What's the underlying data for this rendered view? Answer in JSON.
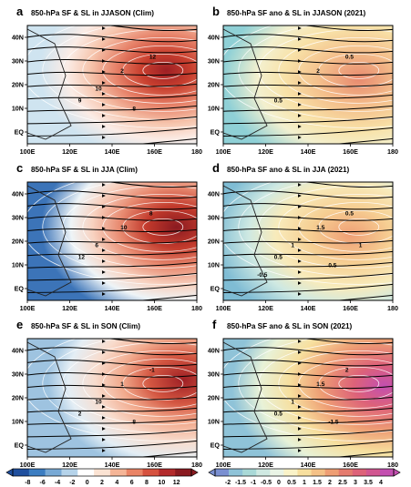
{
  "panels": [
    {
      "letter": "a",
      "title": "850-hPa SF & SL in JJASON (Clim)",
      "kind": "clim",
      "season": "JJASON",
      "contour_labels": [
        "9",
        "2",
        "12",
        "10",
        "8"
      ]
    },
    {
      "letter": "b",
      "title": "850-hPa SF ano & SL in JJASON (2021)",
      "kind": "ano",
      "season": "JJASON",
      "contour_labels": [
        "0.5",
        "2",
        "0.5"
      ]
    },
    {
      "letter": "c",
      "title": "850-hPa SF & SL in JJA (Clim)",
      "kind": "clim",
      "season": "JJA",
      "contour_labels": [
        "12",
        "10",
        "8",
        "6"
      ]
    },
    {
      "letter": "d",
      "title": "850-hPa SF ano & SL in JJA (2021)",
      "kind": "ano",
      "season": "JJA",
      "contour_labels": [
        "0.5",
        "1.5",
        "0.5",
        "1",
        "0.5",
        "-0.5",
        "1"
      ]
    },
    {
      "letter": "e",
      "title": "850-hPa SF & SL in SON (Clim)",
      "kind": "clim",
      "season": "SON",
      "contour_labels": [
        "2",
        "1",
        "-1",
        "10",
        "8"
      ]
    },
    {
      "letter": "f",
      "title": "850-hPa SF ano & SL in SON (2021)",
      "kind": "ano",
      "season": "SON",
      "contour_labels": [
        "0.5",
        "1.5",
        "2",
        "1",
        "-1.5"
      ]
    }
  ],
  "axes": {
    "x_ticks": [
      "100E",
      "120E",
      "140E",
      "160E",
      "180"
    ],
    "y_ticks": [
      "40N",
      "30N",
      "20N",
      "10N",
      "EQ"
    ],
    "x_range": [
      100,
      180
    ],
    "y_range": [
      -5,
      45
    ]
  },
  "colorbar_clim": {
    "labels": [
      "-8",
      "-6",
      "-4",
      "-2",
      "0",
      "2",
      "4",
      "6",
      "8",
      "10",
      "12"
    ],
    "colors": [
      "#1f4f9e",
      "#3c7dc1",
      "#78a9d5",
      "#b5d3ea",
      "#ffffff",
      "#fbe3d3",
      "#f5b597",
      "#ea8466",
      "#d6523f",
      "#b32a2b",
      "#8a1a20"
    ]
  },
  "colorbar_ano": {
    "labels": [
      "-2",
      "-1.5",
      "-1",
      "-0.5",
      "0",
      "0.5",
      "1",
      "1.5",
      "2",
      "2.5",
      "3",
      "3.5",
      "4"
    ],
    "colors": [
      "#7a8fd1",
      "#8fc3d8",
      "#a9d9d7",
      "#cfe9e2",
      "#eaf4e6",
      "#faf3c8",
      "#f7df9e",
      "#f4c187",
      "#ee9e74",
      "#e47b6e",
      "#dd6279",
      "#d15690",
      "#c34fb0"
    ]
  },
  "chart_data": [
    {
      "type": "heatmap",
      "title": "850-hPa SF & SL in JJASON (Clim)",
      "x_ticks": [
        "100E",
        "120E",
        "140E",
        "160E",
        "180"
      ],
      "y_ticks": [
        "40N",
        "30N",
        "20N",
        "10N",
        "EQ"
      ],
      "field": "streamfunction",
      "max_center": {
        "lon": 165,
        "lat": 30,
        "value": 12
      },
      "min_center": {
        "lon": 105,
        "lat": 5,
        "value": -2
      },
      "colorbar": [
        -8,
        -6,
        -4,
        -2,
        0,
        2,
        4,
        6,
        8,
        10,
        12
      ]
    },
    {
      "type": "heatmap",
      "title": "850-hPa SF ano & SL in JJASON (2021)",
      "x_ticks": [
        "100E",
        "120E",
        "140E",
        "160E",
        "180"
      ],
      "y_ticks": [
        "40N",
        "30N",
        "20N",
        "10N",
        "EQ"
      ],
      "field": "streamfunction anomaly",
      "max_center": {
        "lon": 160,
        "lat": 28,
        "value": 2
      },
      "min_center": {
        "lon": 115,
        "lat": 15,
        "value": -0.5
      },
      "colorbar": [
        -2,
        -1.5,
        -1,
        -0.5,
        0,
        0.5,
        1,
        1.5,
        2,
        2.5,
        3,
        3.5,
        4
      ]
    },
    {
      "type": "heatmap",
      "title": "850-hPa SF & SL in JJA (Clim)",
      "x_ticks": [
        "100E",
        "120E",
        "140E",
        "160E",
        "180"
      ],
      "y_ticks": [
        "40N",
        "30N",
        "20N",
        "10N",
        "EQ"
      ],
      "field": "streamfunction",
      "max_center": {
        "lon": 168,
        "lat": 30,
        "value": 12
      },
      "min_center": {
        "lon": 102,
        "lat": 35,
        "value": -8
      },
      "colorbar": [
        -8,
        -6,
        -4,
        -2,
        0,
        2,
        4,
        6,
        8,
        10,
        12
      ]
    },
    {
      "type": "heatmap",
      "title": "850-hPa SF ano & SL in JJA (2021)",
      "x_ticks": [
        "100E",
        "120E",
        "140E",
        "160E",
        "180"
      ],
      "y_ticks": [
        "40N",
        "30N",
        "20N",
        "10N",
        "EQ"
      ],
      "field": "streamfunction anomaly",
      "max_center": {
        "lon": 158,
        "lat": 27,
        "value": 1.5
      },
      "min_center": {
        "lon": 125,
        "lat": 18,
        "value": -0.5
      },
      "colorbar": [
        -2,
        -1.5,
        -1,
        -0.5,
        0,
        0.5,
        1,
        1.5,
        2,
        2.5,
        3,
        3.5,
        4
      ]
    },
    {
      "type": "heatmap",
      "title": "850-hPa SF & SL in SON (Clim)",
      "x_ticks": [
        "100E",
        "120E",
        "140E",
        "160E",
        "180"
      ],
      "y_ticks": [
        "40N",
        "30N",
        "20N",
        "10N",
        "EQ"
      ],
      "field": "streamfunction",
      "max_center": {
        "lon": 172,
        "lat": 30,
        "value": 11
      },
      "min_center": {
        "lon": 120,
        "lat": 15,
        "value": -1
      },
      "colorbar": [
        -8,
        -6,
        -4,
        -2,
        0,
        2,
        4,
        6,
        8,
        10,
        12
      ]
    },
    {
      "type": "heatmap",
      "title": "850-hPa SF ano & SL in SON (2021)",
      "x_ticks": [
        "100E",
        "120E",
        "140E",
        "160E",
        "180"
      ],
      "y_ticks": [
        "40N",
        "30N",
        "20N",
        "10N",
        "EQ"
      ],
      "field": "streamfunction anomaly",
      "max_center": {
        "lon": 175,
        "lat": 30,
        "value": 4
      },
      "min_center": {
        "lon": 135,
        "lat": 0,
        "value": -1.5
      },
      "colorbar": [
        -2,
        -1.5,
        -1,
        -0.5,
        0,
        0.5,
        1,
        1.5,
        2,
        2.5,
        3,
        3.5,
        4
      ]
    }
  ]
}
